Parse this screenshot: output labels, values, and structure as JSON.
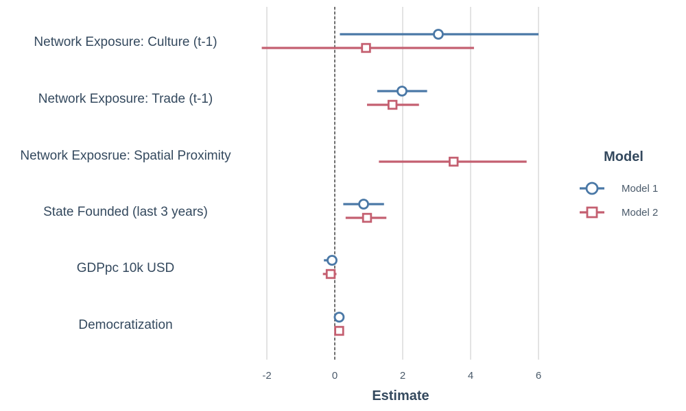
{
  "chart_data": {
    "type": "scatter",
    "subtype": "coefficient-plot",
    "title": "",
    "xlabel": "Estimate",
    "ylabel": "",
    "xlim": [
      -2.2,
      6.4
    ],
    "xticks": [
      -2,
      0,
      2,
      4,
      6
    ],
    "xtick_labels": [
      "-2",
      "0",
      "2",
      "4",
      "6"
    ],
    "reference_line": 0,
    "grid": "vertical-major",
    "legend_title": "Model",
    "legend_position": "right",
    "categories": [
      "Network Exposure: Culture (t-1)",
      "Network Exposure: Trade (t-1)",
      "Network Exposrue: Spatial Proximity",
      "State Founded (last 3 years)",
      "GDPpc 10k USD",
      "Democratization"
    ],
    "series": [
      {
        "name": "Model 1",
        "color": "#4a78a6",
        "marker": "circle",
        "points": [
          {
            "category": "Network Exposure: Culture (t-1)",
            "estimate": 3.05,
            "low": 0.15,
            "high": 6.0
          },
          {
            "category": "Network Exposure: Trade (t-1)",
            "estimate": 1.98,
            "low": 1.25,
            "high": 2.72
          },
          {
            "category": "State Founded (last 3 years)",
            "estimate": 0.85,
            "low": 0.25,
            "high": 1.45
          },
          {
            "category": "GDPpc 10k USD",
            "estimate": -0.08,
            "low": -0.32,
            "high": 0.05
          },
          {
            "category": "Democratization",
            "estimate": 0.13,
            "low": 0.08,
            "high": 0.18
          }
        ]
      },
      {
        "name": "Model 2",
        "color": "#c45f70",
        "marker": "square",
        "points": [
          {
            "category": "Network Exposure: Culture (t-1)",
            "estimate": 0.92,
            "low": -2.15,
            "high": 4.1
          },
          {
            "category": "Network Exposure: Trade (t-1)",
            "estimate": 1.7,
            "low": 0.95,
            "high": 2.48
          },
          {
            "category": "Network Exposrue: Spatial Proximity",
            "estimate": 3.5,
            "low": 1.3,
            "high": 5.65
          },
          {
            "category": "State Founded (last 3 years)",
            "estimate": 0.95,
            "low": 0.32,
            "high": 1.52
          },
          {
            "category": "GDPpc 10k USD",
            "estimate": -0.12,
            "low": -0.35,
            "high": 0.05
          },
          {
            "category": "Democratization",
            "estimate": 0.13,
            "low": 0.1,
            "high": 0.16
          }
        ]
      }
    ]
  }
}
